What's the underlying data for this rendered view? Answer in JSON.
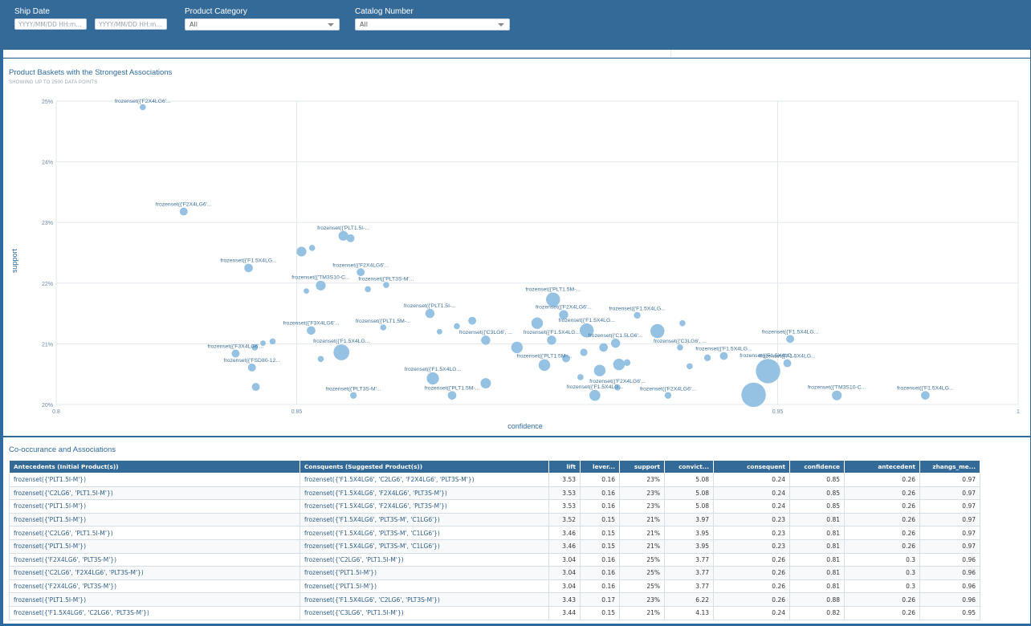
{
  "filters": {
    "ship_date": {
      "label": "Ship Date",
      "start_placeholder": "YYYY/MM/DD HH:m...",
      "end_placeholder": "YYYY/MM/DD HH:m..."
    },
    "product_category": {
      "label": "Product Category",
      "value": "All"
    },
    "catalog_number": {
      "label": "Catalog Number",
      "value": "All"
    }
  },
  "chart_panel": {
    "title": "Product Baskets with the Strongest Associations",
    "subtitle": "SHOWING UP TO 2500 DATA POINTS"
  },
  "chart_data": {
    "type": "scatter",
    "xlabel": "confidence",
    "ylabel": "support",
    "xlim": [
      0.8,
      1.0
    ],
    "ylim": [
      0.2,
      0.25
    ],
    "x_ticks": [
      {
        "v": 0.8,
        "label": "0.8"
      },
      {
        "v": 0.85,
        "label": "0.85"
      },
      {
        "v": 0.95,
        "label": "0.95"
      },
      {
        "v": 1.0,
        "label": "1"
      }
    ],
    "y_ticks": [
      {
        "v": 0.2,
        "label": "20%"
      },
      {
        "v": 0.21,
        "label": "21%"
      },
      {
        "v": 0.22,
        "label": "22%"
      },
      {
        "v": 0.23,
        "label": "23%"
      },
      {
        "v": 0.24,
        "label": "24%"
      },
      {
        "v": 0.25,
        "label": "25%"
      }
    ],
    "marker_color": "#8fbfe0",
    "points": [
      {
        "x": 0.818,
        "y": 0.249,
        "s": 1,
        "label": "frozenset({'F2X4LG6'..."
      },
      {
        "x": 0.8265,
        "y": 0.2318,
        "s": 1.3,
        "label": "frozenset({'F2X4LG6'..."
      },
      {
        "x": 0.8597,
        "y": 0.2278,
        "s": 1.6,
        "label": "frozenset({'PLT1.5I-..."
      },
      {
        "x": 0.8612,
        "y": 0.2274,
        "s": 1.3
      },
      {
        "x": 0.8532,
        "y": 0.2258,
        "s": 1
      },
      {
        "x": 0.851,
        "y": 0.2252,
        "s": 1.6
      },
      {
        "x": 0.84,
        "y": 0.2225,
        "s": 1.4,
        "label": "frozenset({'F1.5X4LG..."
      },
      {
        "x": 0.8633,
        "y": 0.2218,
        "s": 1.3,
        "label": "frozenset({'F2X4LG6'..."
      },
      {
        "x": 0.855,
        "y": 0.2196,
        "s": 1.6,
        "label": "frozenset({'TM3S10-C..."
      },
      {
        "x": 0.8686,
        "y": 0.2197,
        "s": 1,
        "label": "frozenset({'PLT3S-M'..."
      },
      {
        "x": 0.852,
        "y": 0.2187,
        "s": 0.9
      },
      {
        "x": 0.8648,
        "y": 0.219,
        "s": 1
      },
      {
        "x": 0.9033,
        "y": 0.2173,
        "s": 2.3,
        "label": "frozenset({'PLT1.5M-..."
      },
      {
        "x": 0.8777,
        "y": 0.215,
        "s": 1.5,
        "label": "frozenset({'PLT1.5I-..."
      },
      {
        "x": 0.9055,
        "y": 0.2148,
        "s": 1.5,
        "label": "frozenset({'F2X4LG6'..."
      },
      {
        "x": 0.868,
        "y": 0.2127,
        "s": 1,
        "label": "frozenset({'PLT1.5M-..."
      },
      {
        "x": 0.9,
        "y": 0.2134,
        "s": 1.9
      },
      {
        "x": 0.8865,
        "y": 0.2138,
        "s": 1.3
      },
      {
        "x": 0.9208,
        "y": 0.2147,
        "s": 1.1,
        "label": "frozenset({'F1.5X4LG..."
      },
      {
        "x": 0.8833,
        "y": 0.2129,
        "s": 1
      },
      {
        "x": 0.8797,
        "y": 0.212,
        "s": 0.9
      },
      {
        "x": 0.9103,
        "y": 0.2122,
        "s": 2.3,
        "label": "frozenset({'F1.5X4LG..."
      },
      {
        "x": 0.925,
        "y": 0.2121,
        "s": 2.3
      },
      {
        "x": 0.9302,
        "y": 0.2134,
        "s": 1
      },
      {
        "x": 0.8893,
        "y": 0.2106,
        "s": 1.5,
        "label": "frozenset({'C3LG6', ..."
      },
      {
        "x": 0.853,
        "y": 0.2122,
        "s": 1.4,
        "label": "frozenset({'F3X4LG6'..."
      },
      {
        "x": 0.903,
        "y": 0.2106,
        "s": 1.5,
        "label": "frozenset({'F1.5X4LG..."
      },
      {
        "x": 0.9163,
        "y": 0.2101,
        "s": 1.5,
        "label": "frozenset({'C1.5LG6'..."
      },
      {
        "x": 0.9138,
        "y": 0.2094,
        "s": 1.4
      },
      {
        "x": 0.9526,
        "y": 0.2108,
        "s": 1.3,
        "label": "frozenset({'F1.5X4LG..."
      },
      {
        "x": 0.9297,
        "y": 0.2094,
        "s": 1,
        "label": "frozenset({'C3LG6', ..."
      },
      {
        "x": 0.845,
        "y": 0.2104,
        "s": 1
      },
      {
        "x": 0.843,
        "y": 0.2101,
        "s": 0.9
      },
      {
        "x": 0.8413,
        "y": 0.2094,
        "s": 1
      },
      {
        "x": 0.8958,
        "y": 0.2094,
        "s": 1.9
      },
      {
        "x": 0.8593,
        "y": 0.2086,
        "s": 2.6,
        "label": "frozenset({'F1.5X4LG..."
      },
      {
        "x": 0.8373,
        "y": 0.2084,
        "s": 1.3,
        "label": "frozenset({'F3X4LG6'..."
      },
      {
        "x": 0.9097,
        "y": 0.2086,
        "s": 1.2
      },
      {
        "x": 0.9388,
        "y": 0.208,
        "s": 1.3,
        "label": "frozenset({'F1.5X4LG..."
      },
      {
        "x": 0.9354,
        "y": 0.2077,
        "s": 1.1
      },
      {
        "x": 0.855,
        "y": 0.2075,
        "s": 1
      },
      {
        "x": 0.906,
        "y": 0.2076,
        "s": 1.3
      },
      {
        "x": 0.9187,
        "y": 0.2069,
        "s": 1.1
      },
      {
        "x": 0.917,
        "y": 0.2066,
        "s": 1.9
      },
      {
        "x": 0.9015,
        "y": 0.2065,
        "s": 1.9,
        "label": "frozenset({'PLT1.5M-..."
      },
      {
        "x": 0.8407,
        "y": 0.2061,
        "s": 1.3,
        "label": "frozenset({'FSD80-12..."
      },
      {
        "x": 0.952,
        "y": 0.2068,
        "s": 1.3,
        "label": "frozenset({'F1.5X4LG..."
      },
      {
        "x": 0.9317,
        "y": 0.2063,
        "s": 1
      },
      {
        "x": 0.913,
        "y": 0.2056,
        "s": 1.9
      },
      {
        "x": 0.948,
        "y": 0.2055,
        "s": 4.0,
        "label": "frozenset({'F1.5X4LG..."
      },
      {
        "x": 0.909,
        "y": 0.2045,
        "s": 1
      },
      {
        "x": 0.8783,
        "y": 0.2043,
        "s": 2.0,
        "label": "frozenset({'F1.5X4LG..."
      },
      {
        "x": 0.8893,
        "y": 0.2035,
        "s": 1.7
      },
      {
        "x": 0.9167,
        "y": 0.2028,
        "s": 1,
        "label": "frozenset({'F2X4LG6'..."
      },
      {
        "x": 0.8415,
        "y": 0.2029,
        "s": 1.3
      },
      {
        "x": 0.8823,
        "y": 0.2015,
        "s": 1.4,
        "label": "frozenset({'PLT1.5M-..."
      },
      {
        "x": 0.8618,
        "y": 0.2015,
        "s": 1.1,
        "label": "frozenset({'PLT3S-M'..."
      },
      {
        "x": 0.912,
        "y": 0.2015,
        "s": 1.8,
        "label": "frozenset({'F1.5X4LG..."
      },
      {
        "x": 0.9272,
        "y": 0.2015,
        "s": 1.1,
        "label": "frozenset({'F2X4LG6'..."
      },
      {
        "x": 0.945,
        "y": 0.2016,
        "s": 4.0
      },
      {
        "x": 0.9623,
        "y": 0.2015,
        "s": 1.6,
        "label": "frozenset({'TM3S10-C..."
      },
      {
        "x": 0.9807,
        "y": 0.2015,
        "s": 1.4,
        "label": "frozenset({'F1.5X4LG..."
      }
    ]
  },
  "table_panel": {
    "title": "Co-occurance and Associations",
    "columns": [
      "Antecedents (Initial Product(s))",
      "Consquents (Suggested Product(s))",
      "lift",
      "lever...",
      "support",
      "convict...",
      "consequent",
      "confidence",
      "antecedent",
      "zhangs_me..."
    ],
    "rows": [
      [
        "frozenset({'PLT1.5I-M'})",
        "frozenset({'F1.5X4LG6', 'C2LG6', 'F2X4LG6', 'PLT3S-M'})",
        "3.53",
        "0.16",
        "23%",
        "5.08",
        "0.24",
        "0.85",
        "0.26",
        "0.97"
      ],
      [
        "frozenset({'C2LG6', 'PLT1.5I-M'})",
        "frozenset({'F1.5X4LG6', 'F2X4LG6', 'PLT3S-M'})",
        "3.53",
        "0.16",
        "23%",
        "5.08",
        "0.24",
        "0.85",
        "0.26",
        "0.97"
      ],
      [
        "frozenset({'PLT1.5I-M'})",
        "frozenset({'F1.5X4LG6', 'F2X4LG6', 'PLT3S-M'})",
        "3.53",
        "0.16",
        "23%",
        "5.08",
        "0.24",
        "0.85",
        "0.26",
        "0.97"
      ],
      [
        "frozenset({'PLT1.5I-M'})",
        "frozenset({'F1.5X4LG6', 'PLT3S-M', 'C1LG6'})",
        "3.52",
        "0.15",
        "21%",
        "3.97",
        "0.23",
        "0.81",
        "0.26",
        "0.97"
      ],
      [
        "frozenset({'C2LG6', 'PLT1.5I-M'})",
        "frozenset({'F1.5X4LG6', 'PLT3S-M', 'C1LG6'})",
        "3.46",
        "0.15",
        "21%",
        "3.95",
        "0.23",
        "0.81",
        "0.26",
        "0.97"
      ],
      [
        "frozenset({'PLT1.5I-M'})",
        "frozenset({'F1.5X4LG6', 'PLT3S-M', 'C1LG6'})",
        "3.46",
        "0.15",
        "21%",
        "3.95",
        "0.23",
        "0.81",
        "0.26",
        "0.97"
      ],
      [
        "frozenset({'F2X4LG6', 'PLT3S-M'})",
        "frozenset({'C2LG6', 'PLT1.5I-M'})",
        "3.04",
        "0.16",
        "25%",
        "3.77",
        "0.26",
        "0.81",
        "0.3",
        "0.96"
      ],
      [
        "frozenset({'C2LG6', 'F2X4LG6', 'PLT3S-M'})",
        "frozenset({'PLT1.5I-M'})",
        "3.04",
        "0.16",
        "25%",
        "3.77",
        "0.26",
        "0.81",
        "0.3",
        "0.96"
      ],
      [
        "frozenset({'F2X4LG6', 'PLT3S-M'})",
        "frozenset({'PLT1.5I-M'})",
        "3.04",
        "0.16",
        "25%",
        "3.77",
        "0.26",
        "0.81",
        "0.3",
        "0.96"
      ],
      [
        "frozenset({'PLT1.5I-M'})",
        "frozenset({'F1.5X4LG6', 'C2LG6', 'PLT3S-M'})",
        "3.43",
        "0.17",
        "23%",
        "6.22",
        "0.26",
        "0.88",
        "0.26",
        "0.96"
      ],
      [
        "frozenset({'F1.5X4LG6', 'C2LG6', 'PLT3S-M'})",
        "frozenset({'C3LG6', 'PLT1.5I-M'})",
        "3.44",
        "0.15",
        "21%",
        "4.13",
        "0.24",
        "0.82",
        "0.26",
        "0.95"
      ]
    ]
  }
}
